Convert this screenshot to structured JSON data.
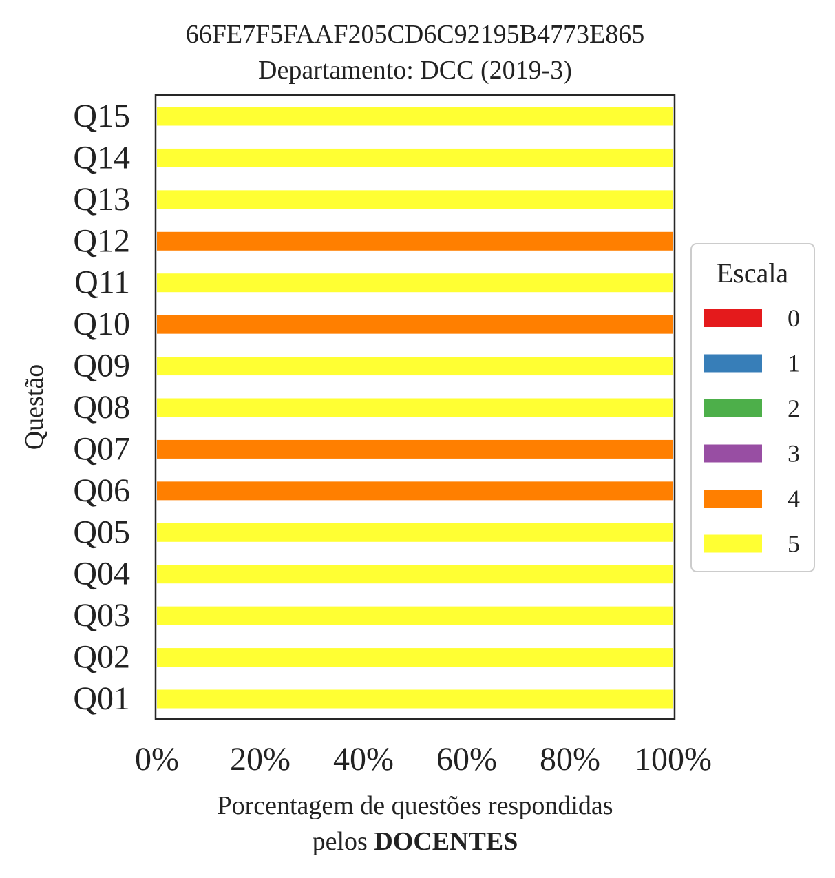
{
  "chart_data": {
    "type": "bar",
    "orientation": "horizontal",
    "stacked": true,
    "title": "66FE7F5FAAF205CD6C92195B4773E865",
    "subtitle": "Departamento: DCC (2019-3)",
    "ylabel": "Questão",
    "xlabel_line1": "Porcentagem de questões respondidas",
    "xlabel_line2_prefix": "pelos ",
    "xlabel_line2_bold": "DOCENTES",
    "xlim": [
      0,
      100
    ],
    "xticks": [
      {
        "value": 0,
        "label": "0%"
      },
      {
        "value": 20,
        "label": "20%"
      },
      {
        "value": 40,
        "label": "40%"
      },
      {
        "value": 60,
        "label": "60%"
      },
      {
        "value": 80,
        "label": "80%"
      },
      {
        "value": 100,
        "label": "100%"
      }
    ],
    "categories": [
      "Q01",
      "Q02",
      "Q03",
      "Q04",
      "Q05",
      "Q06",
      "Q07",
      "Q08",
      "Q09",
      "Q10",
      "Q11",
      "Q12",
      "Q13",
      "Q14",
      "Q15"
    ],
    "series": [
      {
        "name": "0",
        "color": "#e41a1c",
        "values": [
          0,
          0,
          0,
          0,
          0,
          0,
          0,
          0,
          0,
          0,
          0,
          0,
          0,
          0,
          0
        ]
      },
      {
        "name": "1",
        "color": "#377eb8",
        "values": [
          0,
          0,
          0,
          0,
          0,
          0,
          0,
          0,
          0,
          0,
          0,
          0,
          0,
          0,
          0
        ]
      },
      {
        "name": "2",
        "color": "#4daf4a",
        "values": [
          0,
          0,
          0,
          0,
          0,
          0,
          0,
          0,
          0,
          0,
          0,
          0,
          0,
          0,
          0
        ]
      },
      {
        "name": "3",
        "color": "#984ea3",
        "values": [
          0,
          0,
          0,
          0,
          0,
          0,
          0,
          0,
          0,
          0,
          0,
          0,
          0,
          0,
          0
        ]
      },
      {
        "name": "4",
        "color": "#ff7f00",
        "values": [
          0,
          0,
          0,
          0,
          0,
          100,
          100,
          0,
          0,
          100,
          0,
          100,
          0,
          0,
          0
        ]
      },
      {
        "name": "5",
        "color": "#ffff33",
        "values": [
          100,
          100,
          100,
          100,
          100,
          0,
          0,
          100,
          100,
          0,
          100,
          0,
          100,
          100,
          100
        ]
      }
    ],
    "legend": {
      "title": "Escala",
      "placement": "right"
    },
    "grid": false
  }
}
